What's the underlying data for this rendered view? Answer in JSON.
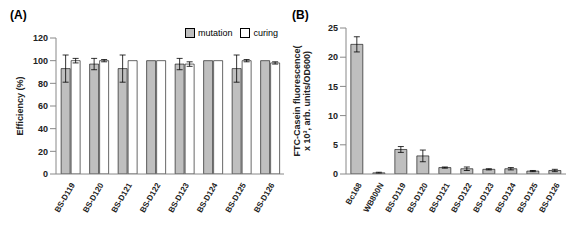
{
  "chart_data": [
    {
      "type": "bar",
      "title": "(A)",
      "y_label": "Efficiency (%)",
      "categories": [
        "BS-D119",
        "BS-D120",
        "BS-D121",
        "BS-D122",
        "BS-D123",
        "BS-D124",
        "BS-D125",
        "BS-D126"
      ],
      "series": [
        {
          "name": "mutation",
          "color": "#bfbfbf",
          "values": [
            93,
            97,
            93,
            100,
            97,
            100,
            93,
            100
          ],
          "errors": [
            12,
            5,
            12,
            0,
            5,
            0,
            12,
            0
          ]
        },
        {
          "name": "curing",
          "color": "#ffffff",
          "values": [
            100,
            100,
            100,
            100,
            97,
            100,
            100,
            98
          ],
          "errors": [
            2,
            1,
            0,
            0,
            2,
            0,
            1,
            1
          ]
        }
      ],
      "ylim": [
        0,
        120
      ],
      "yticks": [
        0,
        20,
        40,
        60,
        80,
        100,
        120
      ],
      "grid": false,
      "legend": "upper right"
    },
    {
      "type": "bar",
      "title": "(B)",
      "y_label": "FTC-Casein fluorescence( x 10³, arb. units/OD600)",
      "categories": [
        "Bc168",
        "WB800N",
        "BS-D119",
        "BS-D120",
        "BS-D121",
        "BS-D122",
        "BS-D123",
        "BS-D124",
        "BS-D125",
        "BS-D126"
      ],
      "series": [
        {
          "name": "FTC-Casein fluorescence",
          "color": "#bfbfbf",
          "values": [
            22.2,
            0.2,
            4.2,
            3.1,
            1.1,
            0.9,
            0.8,
            0.9,
            0.5,
            0.6
          ],
          "errors": [
            1.3,
            0.1,
            0.5,
            1.0,
            0.1,
            0.3,
            0.1,
            0.2,
            0.1,
            0.2
          ]
        }
      ],
      "ylim": [
        0,
        25
      ],
      "yticks": [
        0,
        5,
        10,
        15,
        20,
        25
      ],
      "grid": false
    }
  ]
}
